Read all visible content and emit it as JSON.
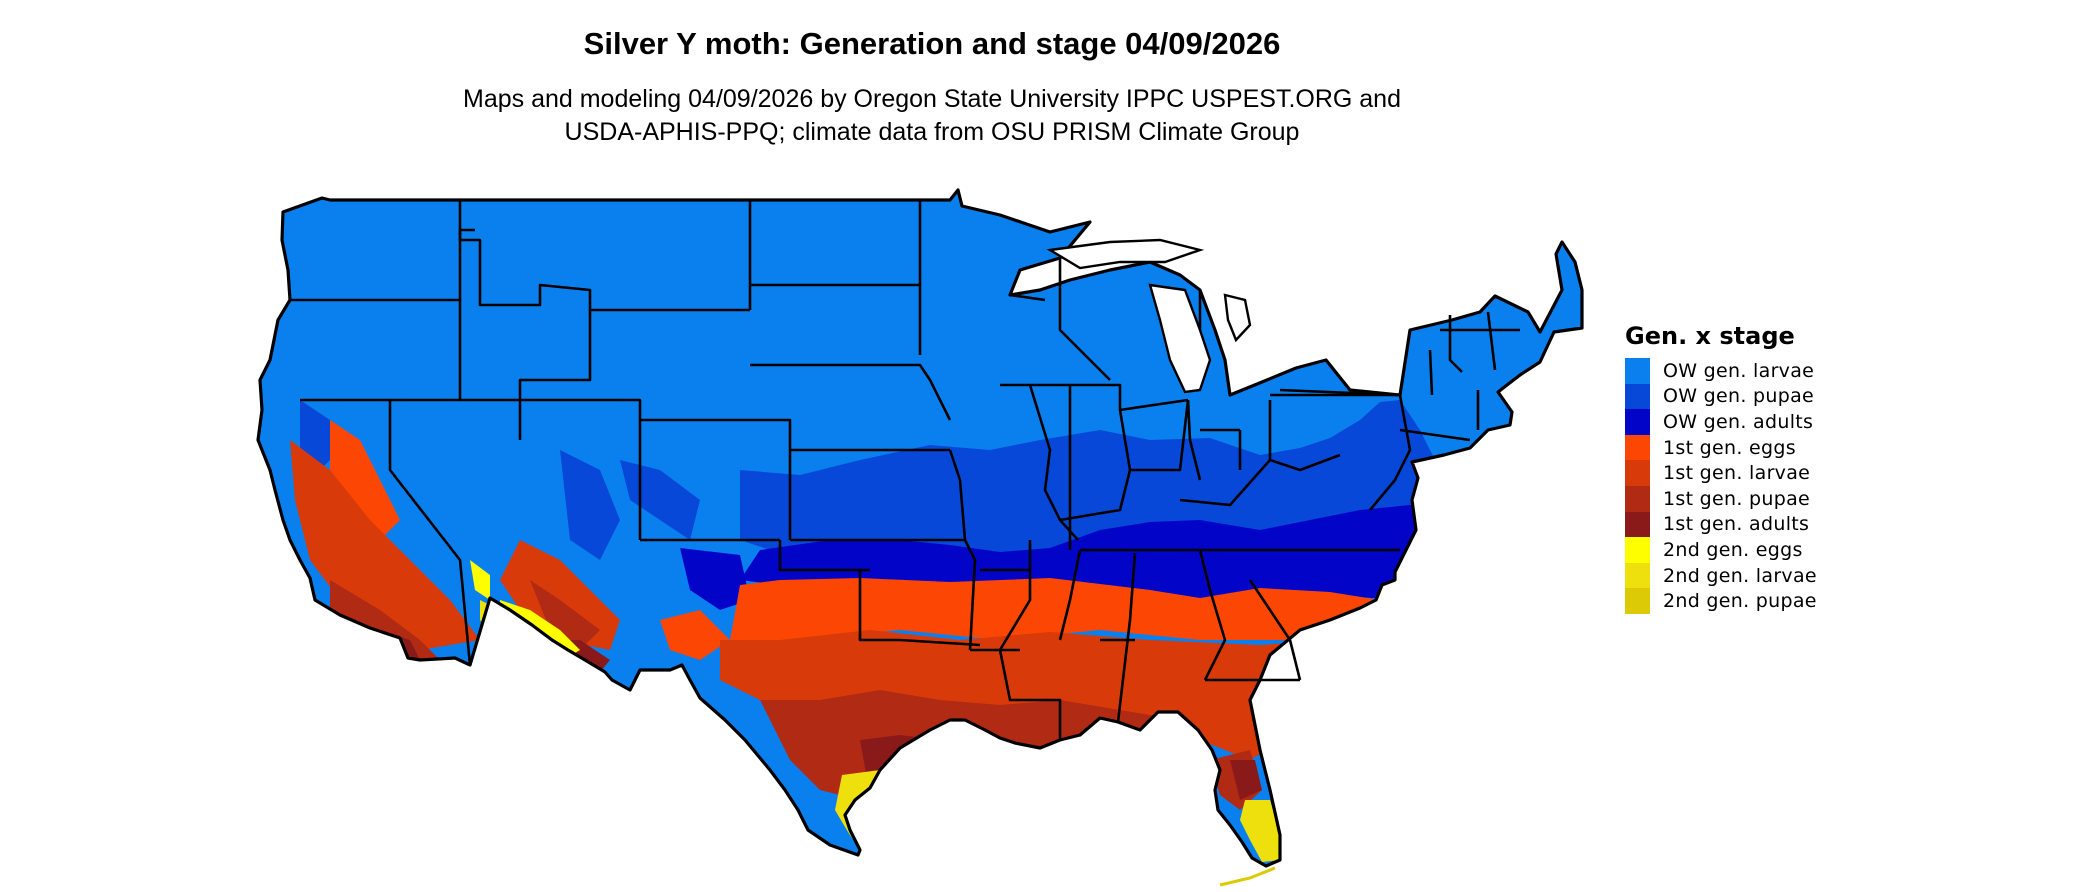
{
  "title": "Silver Y moth: Generation and stage 04/09/2026",
  "subtitle_line1": "Maps and modeling 04/09/2026 by Oregon State University IPPC USPEST.ORG and",
  "subtitle_line2": "USDA-APHIS-PPQ; climate data from OSU PRISM Climate Group",
  "legend": {
    "title": "Gen. x stage",
    "items": [
      {
        "label": "OW gen. larvae",
        "color": "#0a80ee"
      },
      {
        "label": "OW gen. pupae",
        "color": "#0848d8"
      },
      {
        "label": "OW gen. adults",
        "color": "#0204c8"
      },
      {
        "label": "1st gen. eggs",
        "color": "#fc4604"
      },
      {
        "label": "1st gen. larvae",
        "color": "#d83a0a"
      },
      {
        "label": "1st gen. pupae",
        "color": "#b02a14"
      },
      {
        "label": "1st gen. adults",
        "color": "#8a1a1a"
      },
      {
        "label": "2nd gen. eggs",
        "color": "#fefe00"
      },
      {
        "label": "2nd gen. larvae",
        "color": "#eee00c"
      },
      {
        "label": "2nd gen. pupae",
        "color": "#dcca06"
      }
    ]
  }
}
